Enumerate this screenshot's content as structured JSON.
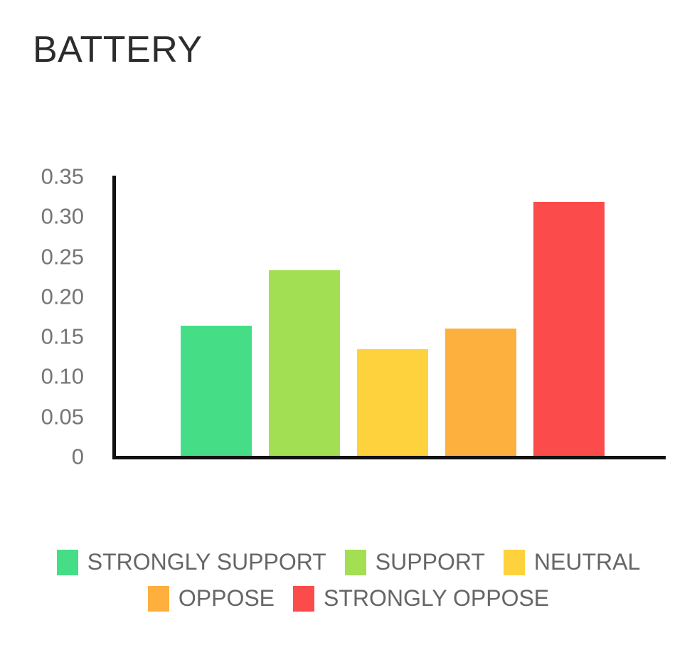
{
  "chart": {
    "title": "BATTERY"
  },
  "chart_data": {
    "type": "bar",
    "title": "BATTERY",
    "categories": [
      "STRONGLY SUPPORT",
      "SUPPORT",
      "NEUTRAL",
      "OPPOSE",
      "STRONGLY OPPOSE"
    ],
    "values": [
      0.163,
      0.232,
      0.133,
      0.159,
      0.317
    ],
    "colors": [
      "#45DE87",
      "#A3DF52",
      "#FED23C",
      "#FDB03D",
      "#FC4B4B"
    ],
    "xlabel": "",
    "ylabel": "",
    "ylim": [
      0,
      0.35
    ],
    "yticks": [
      0,
      0.05,
      0.1,
      0.15,
      0.2,
      0.25,
      0.3,
      0.35
    ],
    "ytick_labels": [
      "0",
      "0.05",
      "0.10",
      "0.15",
      "0.20",
      "0.25",
      "0.30",
      "0.35"
    ],
    "grid": false,
    "legend_position": "bottom",
    "legend_rows": [
      [
        "STRONGLY SUPPORT",
        "SUPPORT",
        "NEUTRAL"
      ],
      [
        "OPPOSE",
        "STRONGLY OPPOSE"
      ]
    ],
    "style": {
      "axis_color": "#111111",
      "tick_label_color": "#757575",
      "legend_text_color": "#666666",
      "title_color": "#2d2d2d",
      "background": "#ffffff"
    }
  }
}
